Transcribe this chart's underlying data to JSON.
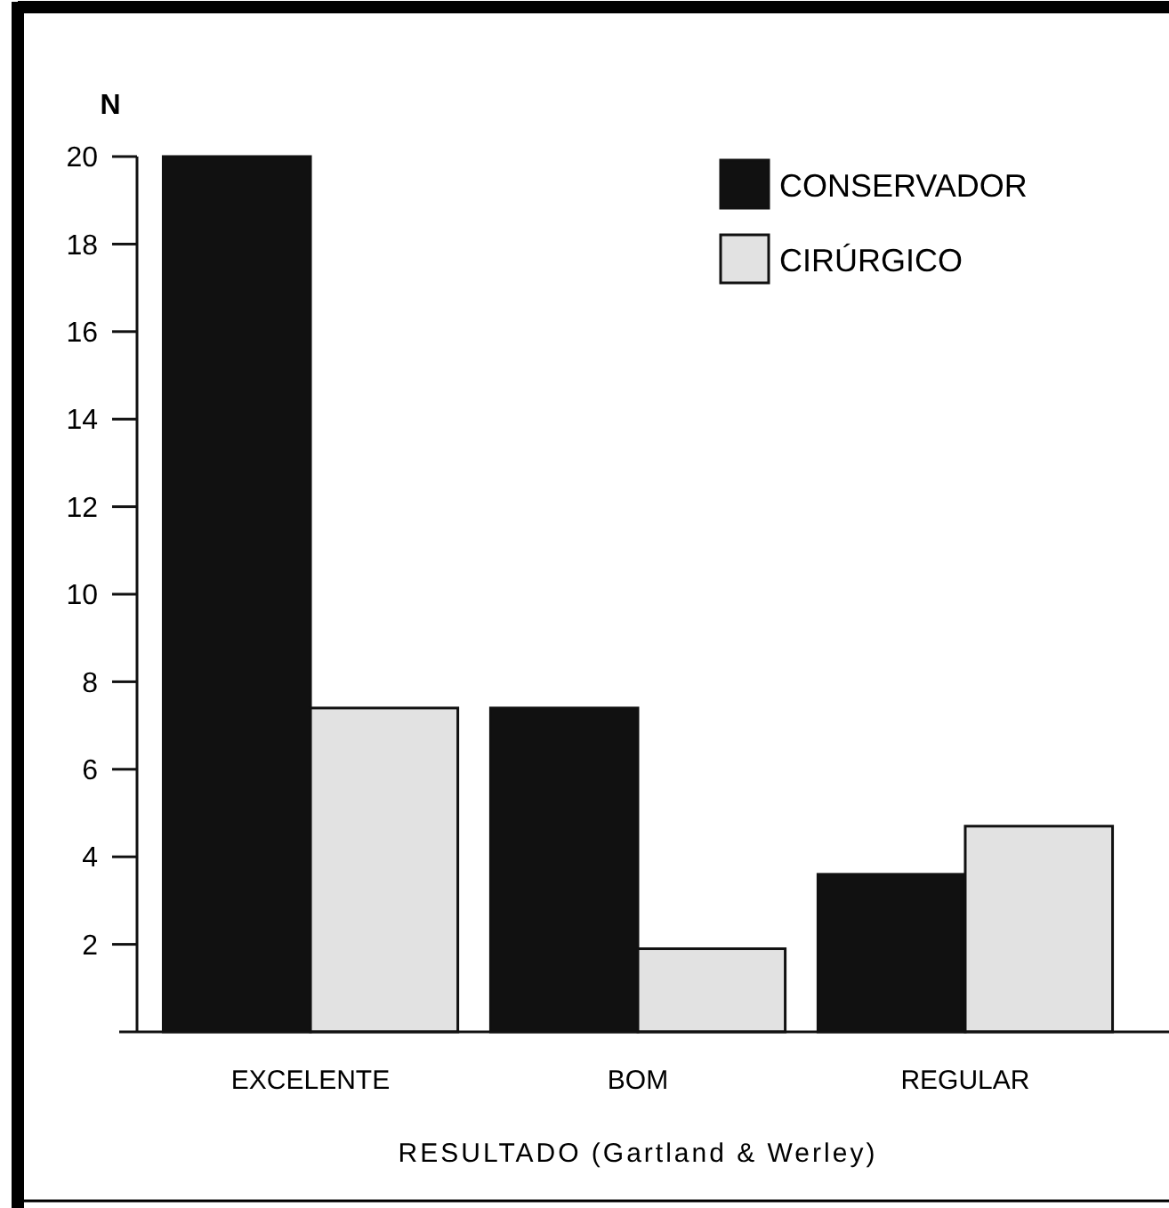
{
  "chart_data": {
    "type": "bar",
    "ylabel": "N",
    "xlabel": "RESULTADO (Gartland & Werley)",
    "categories": [
      "EXCELENTE",
      "BOM",
      "REGULAR"
    ],
    "series": [
      {
        "name": "CONSERVADOR",
        "color": "#111111",
        "values": [
          20,
          7.4,
          3.6
        ]
      },
      {
        "name": "CIRÚRGICO",
        "color": "#e2e2e2",
        "values": [
          7.4,
          1.9,
          4.7
        ]
      }
    ],
    "ylim": [
      0,
      20
    ],
    "yticks": [
      2,
      4,
      6,
      8,
      10,
      12,
      14,
      16,
      18,
      20
    ],
    "grid": false,
    "legend": "top right"
  }
}
